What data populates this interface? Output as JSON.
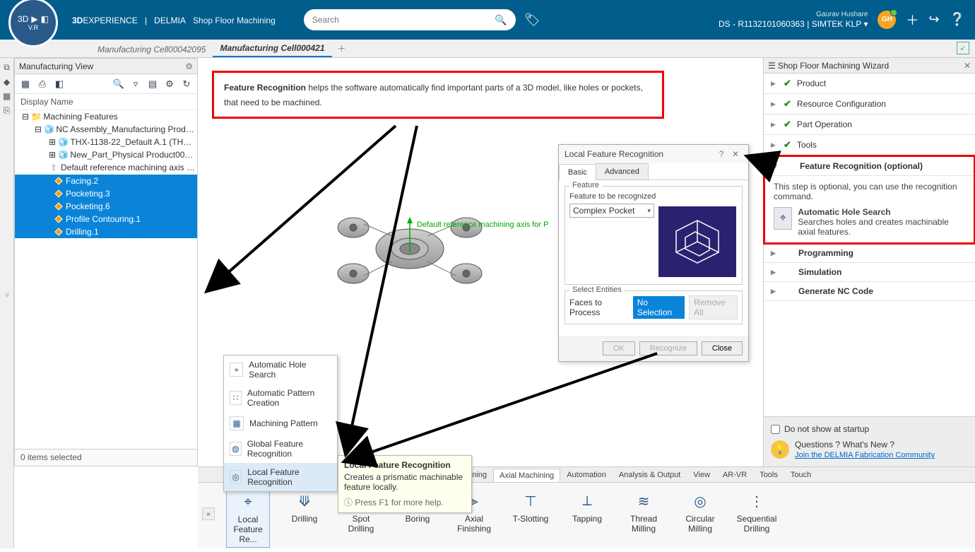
{
  "header": {
    "brand1": "3D",
    "brand2": "EXPERIENCE",
    "brand3": "DELMIA",
    "brand4": "Shop Floor Machining",
    "search_placeholder": "Search",
    "user_small": "Gaurav  Hushare",
    "user_line": "DS - R1132101060363 | SIMTEK KLP",
    "avatar": "GH",
    "compass_vr": "V.R"
  },
  "tabs": {
    "t1": "Manufacturing Cell00042095",
    "t2": "Manufacturing Cell000421"
  },
  "tree": {
    "title": "Manufacturing View",
    "display_name": "Display Name",
    "root": "Machining Features",
    "n1": "NC Assembly_Manufacturing Product...",
    "n2": "THX-1138-22_Default A.1 (THX-1...",
    "n3": "New_Part_Physical Product00042...",
    "n4": "Default reference machining axis for ...",
    "s1": "Facing.2",
    "s2": "Pocketing.3",
    "s3": "Pocketing.6",
    "s4": "Profile Contouring.1",
    "s5": "Drilling.1",
    "footer": "0 items selected"
  },
  "callout": {
    "bold": "Feature Recognition",
    "rest": " helps the software automatically find important parts of a 3D model, like holes or pockets, that need to be machined."
  },
  "viewport": {
    "axis_text": "Default reference machining axis for P"
  },
  "dialog": {
    "title": "Local Feature Recognition",
    "tab_basic": "Basic",
    "tab_advanced": "Advanced",
    "fs_feature": "Feature",
    "label_rec": "Feature to be recognized",
    "combo_value": "Complex Pocket",
    "fs_select": "Select Entities",
    "faces": "Faces to Process",
    "nosel": "No Selection",
    "remove": "Remove All",
    "ok": "OK",
    "recognize": "Recognize",
    "close": "Close"
  },
  "wizard": {
    "title": "Shop Floor Machining Wizard",
    "steps": {
      "product": "Product",
      "resource": "Resource Configuration",
      "partop": "Part Operation",
      "tools": "Tools",
      "feature": "Feature Recognition (optional)",
      "programming": "Programming",
      "simulation": "Simulation",
      "nccode": "Generate NC Code"
    },
    "fr_desc": "This step is optional, you can use the recognition command.",
    "fr_cmd_title": "Automatic Hole Search",
    "fr_cmd_desc": "Searches holes and creates machinable axial features.",
    "dns": "Do not show at startup",
    "q1": "Questions ? What's New ?",
    "link": "Join the DELMIA Fabrication Community"
  },
  "ctxmenu": {
    "m1": "Automatic Hole Search",
    "m2": "Automatic Pattern Creation",
    "m3": "Machining Pattern",
    "m4": "Global Feature Recognition",
    "m5": "Local Feature Recognition"
  },
  "tooltip": {
    "title": "Local Feature Recognition",
    "body": "Creates a prismatic machinable feature locally.",
    "help": "Press F1 for more help."
  },
  "ribbon": {
    "tabs": [
      "Machining",
      "Axial Machining",
      "Automation",
      "Analysis & Output",
      "View",
      "AR-VR",
      "Tools",
      "Touch"
    ],
    "active_tab": 1,
    "cmds": {
      "c1": "Local Feature Re...",
      "c2": "Drilling",
      "c3": "Spot Drilling",
      "c4": "Boring",
      "c5": "Axial Finishing",
      "c6": "T-Slotting",
      "c7": "Tapping",
      "c8": "Thread Milling",
      "c9": "Circular Milling",
      "c10": "Sequential Drilling"
    }
  },
  "colors": {
    "topbar": "#005d8c",
    "accent": "#0a84d8",
    "red": "#e00000",
    "green": "#2a8a2a"
  }
}
